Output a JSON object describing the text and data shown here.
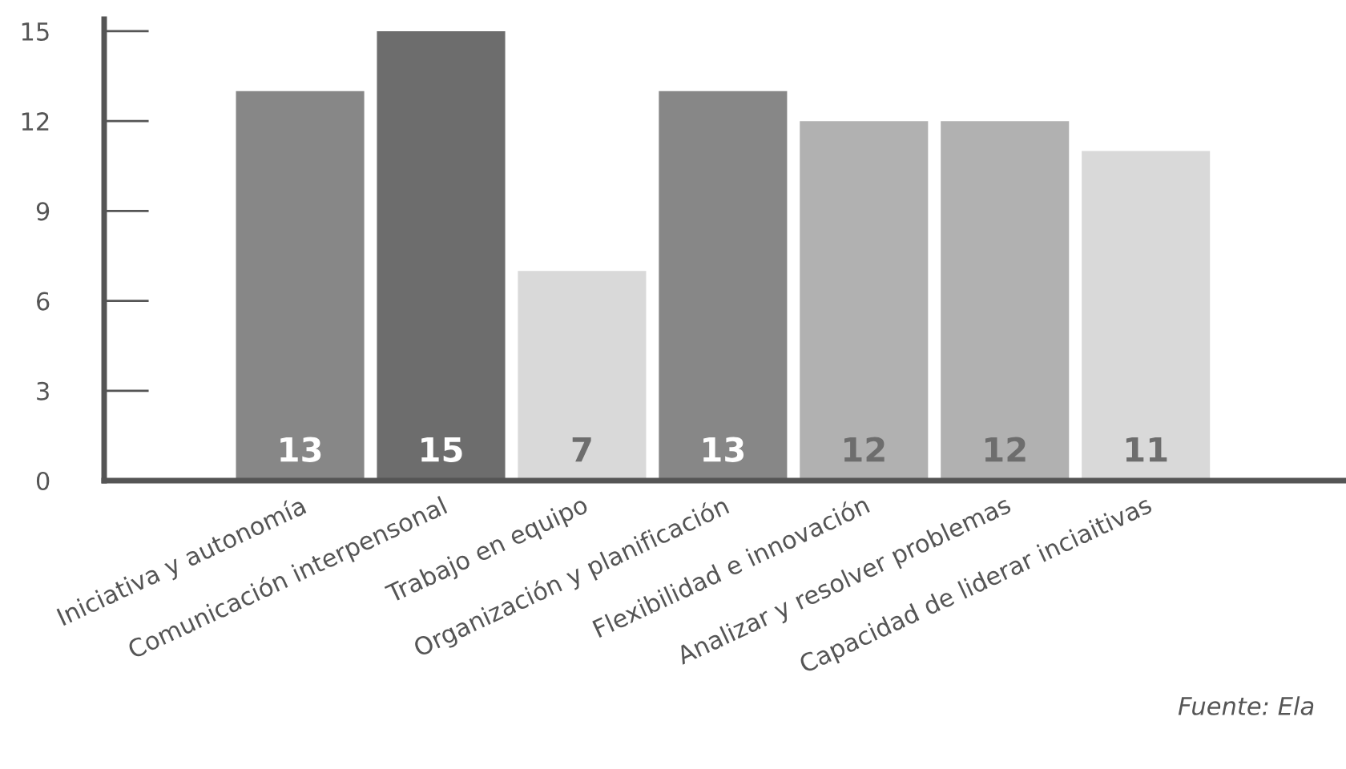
{
  "chart_data": {
    "type": "bar",
    "categories": [
      "Iniciativa y autonomía",
      "Comunicación interpensonal",
      "Trabajo en equipo",
      "Organización y planificación",
      "Flexibilidad e innovación",
      "Analizar y resolver problemas",
      "Capacidad de liderar inciaitivas"
    ],
    "values": [
      13,
      15,
      7,
      13,
      12,
      12,
      11
    ],
    "colors": [
      "#878787",
      "#6d6d6d",
      "#d9d9d9",
      "#878787",
      "#b1b1b1",
      "#b1b1b1",
      "#d9d9d9"
    ],
    "ylim": [
      0,
      15.4
    ],
    "yticks": [
      0,
      3,
      6,
      9,
      12,
      15
    ],
    "data_labels": true,
    "grid": false,
    "annotations": [
      "Fuente: Ela"
    ]
  }
}
